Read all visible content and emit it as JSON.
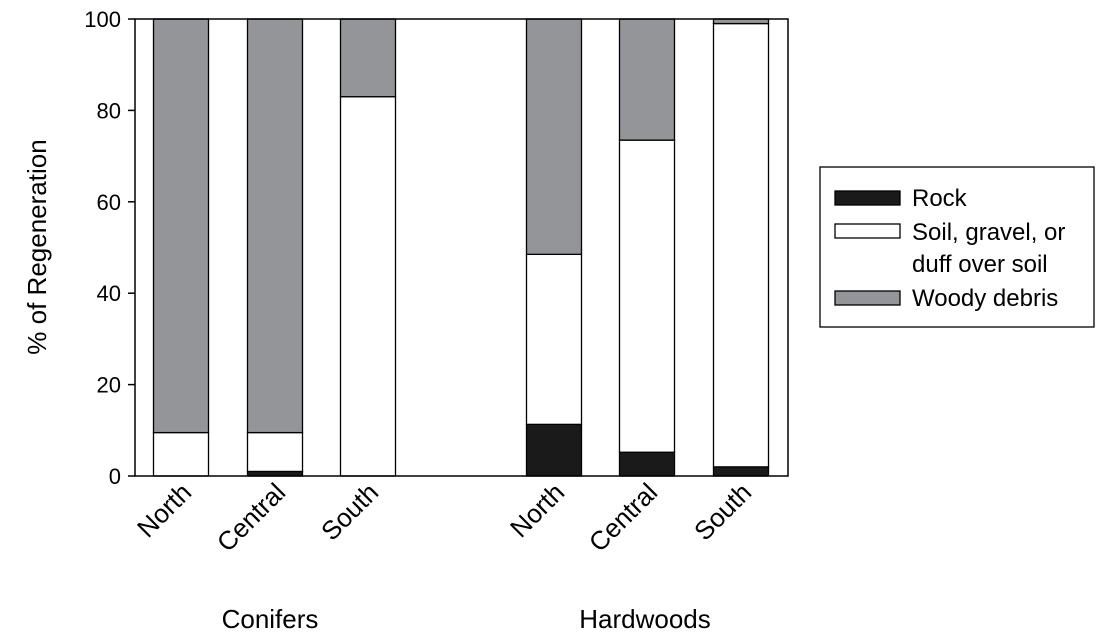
{
  "chart_data": {
    "type": "bar",
    "stacked": true,
    "ylabel": "% of Regeneration",
    "ylim": [
      0,
      100
    ],
    "yticks": [
      0,
      20,
      40,
      60,
      80,
      100
    ],
    "categories": [
      "North",
      "Central",
      "South",
      "North",
      "Central",
      "South"
    ],
    "groups": [
      {
        "label": "Conifers",
        "categories": [
          0,
          1,
          2
        ]
      },
      {
        "label": "Hardwoods",
        "categories": [
          3,
          4,
          5
        ]
      }
    ],
    "series": [
      {
        "name": "Rock",
        "color": "#1a1a1a",
        "values": [
          0,
          1,
          0,
          11.3,
          5.2,
          2
        ]
      },
      {
        "name": "Soil, gravel, or duff over soil",
        "color": "#ffffff",
        "values": [
          9.5,
          8.5,
          83,
          37.2,
          68.3,
          97
        ]
      },
      {
        "name": "Woody debris",
        "color": "#939598",
        "values": [
          90.5,
          90.5,
          17,
          51.5,
          26.5,
          1
        ]
      }
    ],
    "legend": {
      "placement": "right",
      "entries": [
        {
          "lines": [
            "Rock"
          ]
        },
        {
          "lines": [
            "Soil, gravel, or",
            "duff over soil"
          ]
        },
        {
          "lines": [
            "Woody debris"
          ]
        }
      ]
    },
    "grid": false
  }
}
